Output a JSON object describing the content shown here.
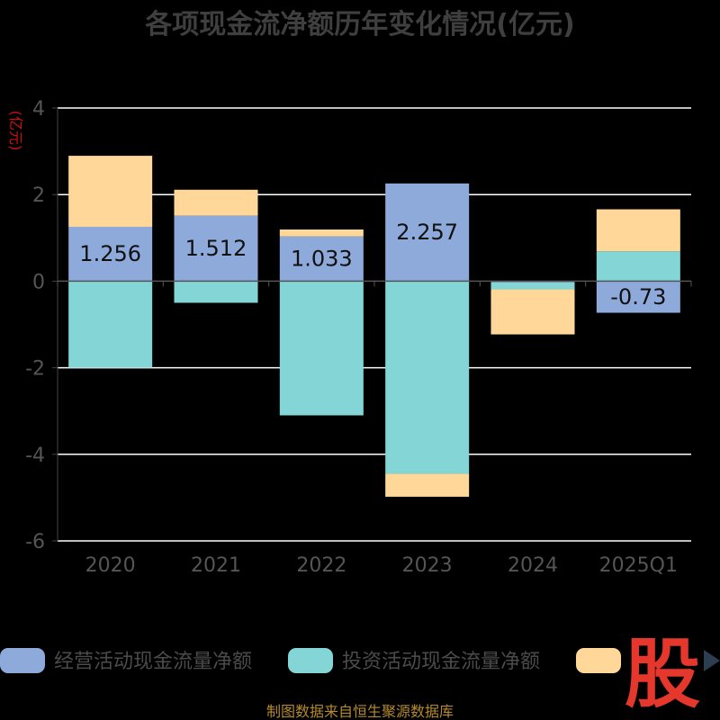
{
  "colors": {
    "background": "#000000",
    "operating": "#8eaadb",
    "investing": "#84d6d6",
    "financing": "#ffd899",
    "grid": "#ffffff",
    "title": "#3f3f3f",
    "watermark": "#e5372b",
    "source": "#b58a2b"
  },
  "chart_data": {
    "type": "bar",
    "stacked": true,
    "title": "各项现金流净额历年变化情况(亿元)",
    "ylabel": "(亿元)",
    "xlabel": "",
    "ylim": [
      -6,
      4
    ],
    "yticks": [
      4,
      2,
      0,
      -2,
      -4,
      -6
    ],
    "grid": true,
    "legend_position": "bottom",
    "categories": [
      "2020",
      "2021",
      "2022",
      "2023",
      "2024",
      "2025Q1"
    ],
    "series": [
      {
        "name": "经营活动现金流量净额",
        "values": [
          1.256,
          1.512,
          1.033,
          2.257,
          -0.03,
          -0.73
        ],
        "data_labels": [
          "1.256",
          "1.512",
          "1.033",
          "2.257",
          "",
          "-0.73"
        ]
      },
      {
        "name": "投资活动现金流量净额",
        "values": [
          -2.0,
          -0.5,
          -3.1,
          -4.45,
          -0.16,
          0.69
        ]
      },
      {
        "values": [
          1.64,
          0.6,
          0.16,
          -0.53,
          -1.04,
          0.97
        ]
      }
    ]
  },
  "source_text": "制图数据来自恒生聚源数据库",
  "watermark_text": "股"
}
